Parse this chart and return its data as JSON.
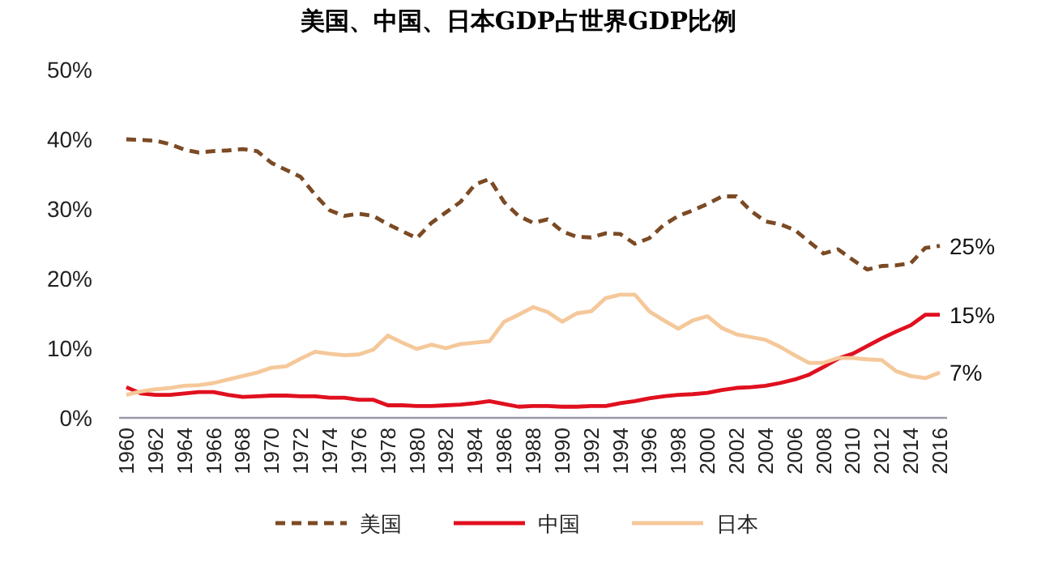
{
  "chart_data": {
    "type": "line",
    "title": "美国、中国、日本GDP占世界GDP比例",
    "x": [
      1960,
      1961,
      1962,
      1963,
      1964,
      1965,
      1966,
      1967,
      1968,
      1969,
      1970,
      1971,
      1972,
      1973,
      1974,
      1975,
      1976,
      1977,
      1978,
      1979,
      1980,
      1981,
      1982,
      1983,
      1984,
      1985,
      1986,
      1987,
      1988,
      1989,
      1990,
      1991,
      1992,
      1993,
      1994,
      1995,
      1996,
      1997,
      1998,
      1999,
      2000,
      2001,
      2002,
      2003,
      2004,
      2005,
      2006,
      2007,
      2008,
      2009,
      2010,
      2011,
      2012,
      2013,
      2014,
      2015,
      2016
    ],
    "series": [
      {
        "name": "美国",
        "color": "#7b4a24",
        "line_style": "dashed",
        "values": [
          40,
          39.9,
          39.8,
          39.3,
          38.5,
          38.1,
          38.3,
          38.4,
          38.6,
          38.3,
          36.6,
          35.6,
          34.6,
          32,
          29.8,
          29,
          29.3,
          29,
          27.8,
          26.8,
          25.8,
          28,
          29.5,
          31,
          33.5,
          34.3,
          31,
          29,
          28,
          28.5,
          26.8,
          26,
          25.9,
          26.5,
          26.4,
          25,
          25.8,
          27.7,
          29,
          29.8,
          30.7,
          31.8,
          31.8,
          29.7,
          28.2,
          27.8,
          27,
          25.3,
          23.6,
          24.2,
          22.7,
          21.3,
          21.8,
          21.9,
          22.2,
          24.4,
          24.7
        ],
        "value_labels": [
          null,
          null,
          null,
          null,
          null,
          null,
          null,
          null,
          null,
          null,
          null,
          null,
          null,
          null,
          null,
          null,
          null,
          null,
          null,
          null,
          null,
          null,
          null,
          null,
          null,
          null,
          null,
          null,
          null,
          null,
          null,
          null,
          null,
          null,
          null,
          null,
          null,
          null,
          null,
          null,
          null,
          null,
          null,
          null,
          null,
          null,
          null,
          null,
          null,
          null,
          null,
          null,
          null,
          null,
          null,
          null,
          "25%"
        ]
      },
      {
        "name": "中国",
        "color": "#e0101f",
        "line_style": "solid",
        "values": [
          4.4,
          3.5,
          3.3,
          3.3,
          3.5,
          3.7,
          3.7,
          3.3,
          3.0,
          3.1,
          3.2,
          3.2,
          3.1,
          3.1,
          2.9,
          2.9,
          2.6,
          2.6,
          1.8,
          1.8,
          1.7,
          1.7,
          1.8,
          1.9,
          2.1,
          2.4,
          2.0,
          1.6,
          1.7,
          1.7,
          1.6,
          1.6,
          1.7,
          1.7,
          2.1,
          2.4,
          2.8,
          3.1,
          3.3,
          3.4,
          3.6,
          4.0,
          4.3,
          4.4,
          4.6,
          5.0,
          5.5,
          6.2,
          7.3,
          8.5,
          9.2,
          10.3,
          11.4,
          12.4,
          13.3,
          14.8,
          14.8
        ],
        "value_labels": [
          null,
          null,
          null,
          null,
          null,
          null,
          null,
          null,
          null,
          null,
          null,
          null,
          null,
          null,
          null,
          null,
          null,
          null,
          null,
          null,
          null,
          null,
          null,
          null,
          null,
          null,
          null,
          null,
          null,
          null,
          null,
          null,
          null,
          null,
          null,
          null,
          null,
          null,
          null,
          null,
          null,
          null,
          null,
          null,
          null,
          null,
          null,
          null,
          null,
          null,
          null,
          null,
          null,
          null,
          null,
          null,
          "15%"
        ]
      },
      {
        "name": "日本",
        "color": "#f5c89a",
        "line_style": "solid",
        "values": [
          3.3,
          3.8,
          4.1,
          4.3,
          4.6,
          4.7,
          5.0,
          5.5,
          6.0,
          6.5,
          7.2,
          7.4,
          8.5,
          9.5,
          9.2,
          9.0,
          9.1,
          9.8,
          11.8,
          10.8,
          9.9,
          10.5,
          10.0,
          10.6,
          10.8,
          11.0,
          13.8,
          14.8,
          15.9,
          15.2,
          13.8,
          15.0,
          15.3,
          17.2,
          17.7,
          17.7,
          15.3,
          14.0,
          12.8,
          14.0,
          14.6,
          12.9,
          12.0,
          11.6,
          11.2,
          10.2,
          9.0,
          7.9,
          7.9,
          8.6,
          8.6,
          8.4,
          8.3,
          6.7,
          6.0,
          5.7,
          6.5
        ],
        "value_labels": [
          null,
          null,
          null,
          null,
          null,
          null,
          null,
          null,
          null,
          null,
          null,
          null,
          null,
          null,
          null,
          null,
          null,
          null,
          null,
          null,
          null,
          null,
          null,
          null,
          null,
          null,
          null,
          null,
          null,
          null,
          null,
          null,
          null,
          null,
          null,
          null,
          null,
          null,
          null,
          null,
          null,
          null,
          null,
          null,
          null,
          null,
          null,
          null,
          null,
          null,
          null,
          null,
          null,
          null,
          null,
          null,
          "7%"
        ]
      }
    ],
    "xlim": [
      1959.5,
      2016.5
    ],
    "xticks": [
      1960,
      1962,
      1964,
      1966,
      1968,
      1970,
      1972,
      1974,
      1976,
      1978,
      1980,
      1982,
      1984,
      1986,
      1988,
      1990,
      1992,
      1994,
      1996,
      1998,
      2000,
      2002,
      2004,
      2006,
      2008,
      2010,
      2012,
      2014,
      2016
    ],
    "ylim": [
      0,
      50
    ],
    "yticks": [
      {
        "value": 0,
        "label": "0%"
      },
      {
        "value": 10,
        "label": "10%"
      },
      {
        "value": 20,
        "label": "20%"
      },
      {
        "value": 30,
        "label": "30%"
      },
      {
        "value": 40,
        "label": "40%"
      },
      {
        "value": 50,
        "label": "50%"
      }
    ],
    "legend": "bottom"
  }
}
